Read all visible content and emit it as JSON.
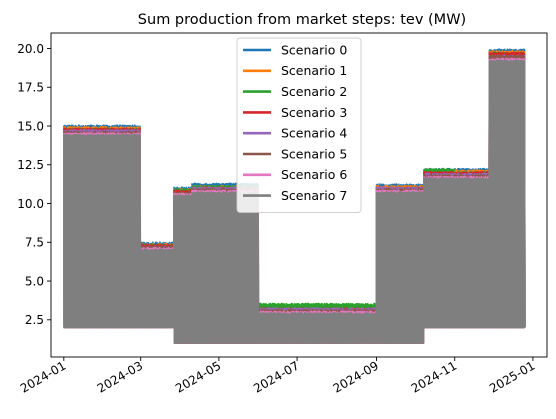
{
  "chart_data": {
    "type": "line",
    "title": "Sum production from market steps: tev (MW)",
    "xlabel": "",
    "ylabel": "",
    "x_ticks": [
      "2024-01",
      "2024-03",
      "2024-05",
      "2024-07",
      "2024-09",
      "2024-11",
      "2025-01"
    ],
    "x_range": [
      "2023-12-22",
      "2025-01-12"
    ],
    "y_ticks": [
      "2.5",
      "5.0",
      "7.5",
      "10.0",
      "12.5",
      "15.0",
      "17.5",
      "20.0"
    ],
    "ylim": [
      0.1,
      21.0
    ],
    "grid": false,
    "legend_position": "upper center",
    "x_start": "2024-01-01",
    "x_end": "2024-12-26",
    "series": [
      {
        "name": "Scenario 0",
        "color": "#1f77b4",
        "segments": [
          {
            "start": "2024-01-01",
            "end": "2024-03-01",
            "low": 2.0,
            "high": 15.0
          },
          {
            "start": "2024-03-01",
            "end": "2024-03-27",
            "low": 2.0,
            "high": 7.45
          },
          {
            "start": "2024-03-27",
            "end": "2024-04-10",
            "low": 1.0,
            "high": 11.0
          },
          {
            "start": "2024-04-10",
            "end": "2024-06-01",
            "low": 1.0,
            "high": 11.25
          },
          {
            "start": "2024-06-01",
            "end": "2024-09-01",
            "low": 1.0,
            "high": 3.4
          },
          {
            "start": "2024-09-01",
            "end": "2024-10-08",
            "low": 1.0,
            "high": 11.2
          },
          {
            "start": "2024-10-08",
            "end": "2024-11-01",
            "low": 2.0,
            "high": 12.2
          },
          {
            "start": "2024-11-01",
            "end": "2024-11-28",
            "low": 2.0,
            "high": 12.2
          },
          {
            "start": "2024-11-28",
            "end": "2024-12-26",
            "low": 2.0,
            "high": 19.9
          }
        ]
      },
      {
        "name": "Scenario 1",
        "color": "#ff7f0e",
        "segments": [
          {
            "start": "2024-01-01",
            "end": "2024-03-01",
            "low": 2.0,
            "high": 14.9
          },
          {
            "start": "2024-03-01",
            "end": "2024-03-27",
            "low": 2.0,
            "high": 7.35
          },
          {
            "start": "2024-03-27",
            "end": "2024-04-10",
            "low": 1.0,
            "high": 10.9
          },
          {
            "start": "2024-04-10",
            "end": "2024-06-01",
            "low": 1.0,
            "high": 11.1
          },
          {
            "start": "2024-06-01",
            "end": "2024-09-01",
            "low": 1.0,
            "high": 3.3
          },
          {
            "start": "2024-09-01",
            "end": "2024-10-08",
            "low": 1.0,
            "high": 11.1
          },
          {
            "start": "2024-10-08",
            "end": "2024-11-01",
            "low": 2.0,
            "high": 12.1
          },
          {
            "start": "2024-11-01",
            "end": "2024-11-28",
            "low": 2.0,
            "high": 12.1
          },
          {
            "start": "2024-11-28",
            "end": "2024-12-26",
            "low": 2.0,
            "high": 19.8
          }
        ]
      },
      {
        "name": "Scenario 2",
        "color": "#2ca02c",
        "segments": [
          {
            "start": "2024-01-01",
            "end": "2024-03-01",
            "low": 2.0,
            "high": 14.8
          },
          {
            "start": "2024-03-01",
            "end": "2024-03-27",
            "low": 2.0,
            "high": 7.3
          },
          {
            "start": "2024-03-27",
            "end": "2024-04-10",
            "low": 1.0,
            "high": 10.9
          },
          {
            "start": "2024-04-10",
            "end": "2024-06-01",
            "low": 1.0,
            "high": 11.1
          },
          {
            "start": "2024-06-01",
            "end": "2024-09-01",
            "low": 1.0,
            "high": 3.5
          },
          {
            "start": "2024-09-01",
            "end": "2024-10-08",
            "low": 1.0,
            "high": 11.0
          },
          {
            "start": "2024-10-08",
            "end": "2024-11-01",
            "low": 2.0,
            "high": 12.2
          },
          {
            "start": "2024-11-01",
            "end": "2024-11-28",
            "low": 2.0,
            "high": 12.0
          },
          {
            "start": "2024-11-28",
            "end": "2024-12-26",
            "low": 2.0,
            "high": 19.7
          }
        ]
      },
      {
        "name": "Scenario 3",
        "color": "#d62728",
        "segments": [
          {
            "start": "2024-01-01",
            "end": "2024-03-01",
            "low": 2.0,
            "high": 14.8
          },
          {
            "start": "2024-03-01",
            "end": "2024-03-27",
            "low": 2.0,
            "high": 7.3
          },
          {
            "start": "2024-03-27",
            "end": "2024-04-10",
            "low": 1.0,
            "high": 10.8
          },
          {
            "start": "2024-04-10",
            "end": "2024-06-01",
            "low": 1.0,
            "high": 11.0
          },
          {
            "start": "2024-06-01",
            "end": "2024-09-01",
            "low": 1.0,
            "high": 3.2
          },
          {
            "start": "2024-09-01",
            "end": "2024-10-08",
            "low": 1.0,
            "high": 11.0
          },
          {
            "start": "2024-10-08",
            "end": "2024-11-01",
            "low": 2.0,
            "high": 12.0
          },
          {
            "start": "2024-11-01",
            "end": "2024-11-28",
            "low": 2.0,
            "high": 12.0
          },
          {
            "start": "2024-11-28",
            "end": "2024-12-26",
            "low": 2.0,
            "high": 19.7
          }
        ]
      },
      {
        "name": "Scenario 4",
        "color": "#9467bd",
        "segments": [
          {
            "start": "2024-01-01",
            "end": "2024-03-01",
            "low": 2.0,
            "high": 14.7
          },
          {
            "start": "2024-03-01",
            "end": "2024-03-27",
            "low": 2.0,
            "high": 7.2
          },
          {
            "start": "2024-03-27",
            "end": "2024-04-10",
            "low": 1.0,
            "high": 9.3
          },
          {
            "start": "2024-04-10",
            "end": "2024-06-01",
            "low": 1.0,
            "high": 11.0
          },
          {
            "start": "2024-06-01",
            "end": "2024-09-01",
            "low": 1.0,
            "high": 3.2
          },
          {
            "start": "2024-09-01",
            "end": "2024-10-08",
            "low": 1.0,
            "high": 11.0
          },
          {
            "start": "2024-10-08",
            "end": "2024-11-01",
            "low": 2.0,
            "high": 11.9
          },
          {
            "start": "2024-11-01",
            "end": "2024-11-28",
            "low": 2.0,
            "high": 11.9
          },
          {
            "start": "2024-11-28",
            "end": "2024-12-26",
            "low": 2.0,
            "high": 19.5
          }
        ]
      },
      {
        "name": "Scenario 5",
        "color": "#8c564b",
        "segments": [
          {
            "start": "2024-01-01",
            "end": "2024-03-01",
            "low": 2.0,
            "high": 14.6
          },
          {
            "start": "2024-03-01",
            "end": "2024-03-27",
            "low": 2.0,
            "high": 7.2
          },
          {
            "start": "2024-03-27",
            "end": "2024-04-10",
            "low": 1.0,
            "high": 10.7
          },
          {
            "start": "2024-04-10",
            "end": "2024-06-01",
            "low": 1.0,
            "high": 10.9
          },
          {
            "start": "2024-06-01",
            "end": "2024-09-01",
            "low": 1.0,
            "high": 3.1
          },
          {
            "start": "2024-09-01",
            "end": "2024-10-08",
            "low": 1.0,
            "high": 10.9
          },
          {
            "start": "2024-10-08",
            "end": "2024-11-01",
            "low": 2.0,
            "high": 11.8
          },
          {
            "start": "2024-11-01",
            "end": "2024-11-28",
            "low": 2.0,
            "high": 11.8
          },
          {
            "start": "2024-11-28",
            "end": "2024-12-26",
            "low": 2.0,
            "high": 19.5
          }
        ]
      },
      {
        "name": "Scenario 6",
        "color": "#e377c2",
        "segments": [
          {
            "start": "2024-01-01",
            "end": "2024-03-01",
            "low": 2.0,
            "high": 14.5
          },
          {
            "start": "2024-03-01",
            "end": "2024-03-27",
            "low": 2.0,
            "high": 7.1
          },
          {
            "start": "2024-03-27",
            "end": "2024-04-10",
            "low": 1.0,
            "high": 10.6
          },
          {
            "start": "2024-04-10",
            "end": "2024-06-01",
            "low": 1.0,
            "high": 10.8
          },
          {
            "start": "2024-06-01",
            "end": "2024-09-01",
            "low": 1.0,
            "high": 3.0
          },
          {
            "start": "2024-09-01",
            "end": "2024-10-08",
            "low": 1.0,
            "high": 10.8
          },
          {
            "start": "2024-10-08",
            "end": "2024-11-01",
            "low": 2.0,
            "high": 11.7
          },
          {
            "start": "2024-11-01",
            "end": "2024-11-28",
            "low": 2.0,
            "high": 11.7
          },
          {
            "start": "2024-11-28",
            "end": "2024-12-26",
            "low": 2.0,
            "high": 19.3
          }
        ]
      },
      {
        "name": "Scenario 7",
        "color": "#7f7f7f",
        "segments": [
          {
            "start": "2024-01-01",
            "end": "2024-03-01",
            "low": 2.0,
            "high": 14.4
          },
          {
            "start": "2024-03-01",
            "end": "2024-03-27",
            "low": 2.0,
            "high": 7.0
          },
          {
            "start": "2024-03-27",
            "end": "2024-04-10",
            "low": 1.0,
            "high": 10.5
          },
          {
            "start": "2024-04-10",
            "end": "2024-06-01",
            "low": 1.0,
            "high": 10.7
          },
          {
            "start": "2024-06-01",
            "end": "2024-09-01",
            "low": 1.0,
            "high": 2.9
          },
          {
            "start": "2024-09-01",
            "end": "2024-10-08",
            "low": 1.0,
            "high": 10.7
          },
          {
            "start": "2024-10-08",
            "end": "2024-11-01",
            "low": 2.0,
            "high": 11.6
          },
          {
            "start": "2024-11-01",
            "end": "2024-11-28",
            "low": 2.0,
            "high": 11.6
          },
          {
            "start": "2024-11-28",
            "end": "2024-12-26",
            "low": 2.0,
            "high": 19.2
          }
        ]
      }
    ]
  }
}
